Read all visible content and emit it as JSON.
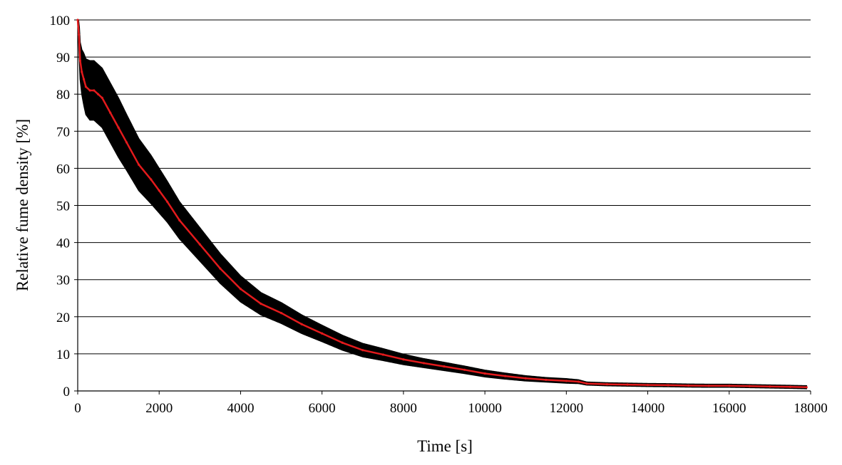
{
  "chart_data": {
    "type": "line",
    "title": "",
    "xlabel": "Time [s]",
    "ylabel": "Relative fume density [%]",
    "xlim": [
      0,
      18000
    ],
    "ylim": [
      0,
      100
    ],
    "x_ticks": [
      0,
      2000,
      4000,
      6000,
      8000,
      10000,
      12000,
      14000,
      16000,
      18000
    ],
    "y_ticks": [
      0,
      10,
      20,
      30,
      40,
      50,
      60,
      70,
      80,
      90,
      100
    ],
    "grid": "horizontal",
    "legend": "none",
    "colors": {
      "line": "#e31a1c",
      "error_bars": "#000000",
      "grid": "#000000"
    },
    "series": [
      {
        "x": [
          0,
          30,
          60,
          100,
          150,
          200,
          300,
          400,
          500,
          600,
          800,
          1000,
          1200,
          1500,
          1800,
          2000,
          2200,
          2500,
          3000,
          3500,
          4000,
          4500,
          5000,
          5500,
          6000,
          6500,
          7000,
          7500,
          8000,
          8500,
          9000,
          9500,
          10000,
          10500,
          11000,
          11500,
          12000,
          12300,
          12500,
          13000,
          13500,
          14000,
          14500,
          15000,
          15500,
          16000,
          16500,
          17000,
          17500,
          17900
        ],
        "y": [
          100,
          96,
          89,
          86,
          84,
          82,
          81,
          81,
          80,
          79,
          75,
          71,
          67,
          61,
          57,
          54,
          51,
          46,
          39.5,
          33,
          27.5,
          23.5,
          21,
          18,
          15.5,
          13,
          11,
          9.8,
          8.5,
          7.5,
          6.6,
          5.7,
          4.7,
          4.0,
          3.4,
          3.0,
          2.7,
          2.5,
          2.0,
          1.8,
          1.7,
          1.6,
          1.55,
          1.45,
          1.4,
          1.4,
          1.3,
          1.2,
          1.1,
          1.0
        ],
        "err": [
          0,
          4,
          5,
          6,
          7,
          7.5,
          8,
          8,
          8,
          8,
          8,
          8,
          7.5,
          7,
          6.5,
          6,
          5.5,
          5,
          4.5,
          4,
          3.5,
          3,
          2.8,
          2.5,
          2.2,
          2,
          1.8,
          1.6,
          1.4,
          1.2,
          1.1,
          1.0,
          0.9,
          0.8,
          0.7,
          0.6,
          0.6,
          0.5,
          0.4,
          0.4,
          0.4,
          0.4,
          0.4,
          0.4,
          0.4,
          0.4,
          0.4,
          0.4,
          0.4,
          0.4
        ]
      }
    ]
  }
}
